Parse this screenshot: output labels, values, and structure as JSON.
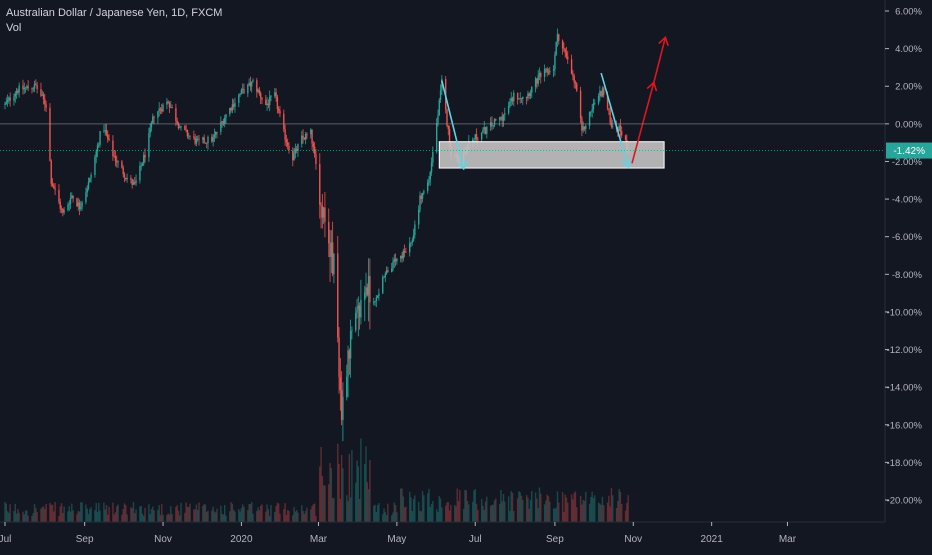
{
  "header": {
    "symbol_line": "Australian Dollar / Japanese Yen, 1D, FXCM",
    "volume_label": "Vol"
  },
  "colors": {
    "background": "#131722",
    "up": "#26a69a",
    "down": "#ef5350",
    "zero_line": "#9598a1",
    "axis_text": "#b2b5be",
    "price_tag": "#26a69a",
    "zone_fill": "#c0c0c0",
    "annotation_cyan": "#5ed4e6",
    "annotation_red": "#e0151e"
  },
  "chart_data": {
    "type": "candlestick",
    "title": "Australian Dollar / Japanese Yen, 1D, FXCM",
    "y_axis_unit": "percent change",
    "y_ticks": [
      6,
      4,
      2,
      0,
      -2,
      -4,
      -6,
      -8,
      -10,
      -12,
      -14,
      -16,
      -18,
      -20
    ],
    "y_tick_labels": [
      "6.00%",
      "4.00%",
      "2.00%",
      "0.00%",
      "-2.00%",
      "-4.00%",
      "-6.00%",
      "-8.00%",
      "-10.00%",
      "-12.00%",
      "-14.00%",
      "-16.00%",
      "-18.00%",
      "-20.00%"
    ],
    "ylim": [
      -21.3,
      6.4
    ],
    "x_axis": {
      "start": "2019-07-01",
      "end": "2021-03-31",
      "ticks": [
        {
          "label": "Jul",
          "date": "2019-07-01"
        },
        {
          "label": "Sep",
          "date": "2019-09-01"
        },
        {
          "label": "Nov",
          "date": "2019-11-01"
        },
        {
          "label": "2020",
          "date": "2020-01-01"
        },
        {
          "label": "Mar",
          "date": "2020-03-01"
        },
        {
          "label": "May",
          "date": "2020-05-01"
        },
        {
          "label": "Jul",
          "date": "2020-07-01"
        },
        {
          "label": "Sep",
          "date": "2020-09-01"
        },
        {
          "label": "Nov",
          "date": "2020-11-01"
        },
        {
          "label": "2021",
          "date": "2021-01-01"
        },
        {
          "label": "Mar",
          "date": "2021-03-01"
        }
      ]
    },
    "price_line": {
      "value": -1.42,
      "label": "-1.42%"
    },
    "grid": false,
    "path_anchors": [
      [
        "2019-07-01",
        1.0
      ],
      [
        "2019-07-10",
        1.8
      ],
      [
        "2019-07-25",
        2.0
      ],
      [
        "2019-08-02",
        1.0
      ],
      [
        "2019-08-06",
        -3.0
      ],
      [
        "2019-08-15",
        -4.8
      ],
      [
        "2019-08-22",
        -3.8
      ],
      [
        "2019-08-28",
        -4.4
      ],
      [
        "2019-09-05",
        -3.0
      ],
      [
        "2019-09-15",
        0.0
      ],
      [
        "2019-09-22",
        -1.5
      ],
      [
        "2019-10-03",
        -2.8
      ],
      [
        "2019-10-10",
        -3.3
      ],
      [
        "2019-10-18",
        -1.6
      ],
      [
        "2019-10-25",
        0.5
      ],
      [
        "2019-11-05",
        1.2
      ],
      [
        "2019-11-15",
        -0.3
      ],
      [
        "2019-11-28",
        -1.0
      ],
      [
        "2019-12-10",
        -0.8
      ],
      [
        "2019-12-20",
        0.5
      ],
      [
        "2019-12-31",
        1.6
      ],
      [
        "2020-01-10",
        2.2
      ],
      [
        "2020-01-20",
        1.0
      ],
      [
        "2020-01-27",
        1.5
      ],
      [
        "2020-02-03",
        -0.5
      ],
      [
        "2020-02-10",
        -1.8
      ],
      [
        "2020-02-17",
        -0.8
      ],
      [
        "2020-02-24",
        -0.5
      ],
      [
        "2020-03-02",
        -3.5
      ],
      [
        "2020-03-09",
        -6.5
      ],
      [
        "2020-03-13",
        -7.5
      ],
      [
        "2020-03-16",
        -11.5
      ],
      [
        "2020-03-19",
        -15.5
      ],
      [
        "2020-03-24",
        -12.0
      ],
      [
        "2020-03-31",
        -10.5
      ],
      [
        "2020-04-07",
        -8.5
      ],
      [
        "2020-04-14",
        -9.5
      ],
      [
        "2020-04-21",
        -8.0
      ],
      [
        "2020-04-28",
        -7.5
      ],
      [
        "2020-05-05",
        -7.0
      ],
      [
        "2020-05-12",
        -6.5
      ],
      [
        "2020-05-19",
        -4.0
      ],
      [
        "2020-05-26",
        -3.0
      ],
      [
        "2020-06-02",
        0.5
      ],
      [
        "2020-06-05",
        2.2
      ],
      [
        "2020-06-12",
        -1.5
      ],
      [
        "2020-06-19",
        -2.0
      ],
      [
        "2020-06-26",
        -1.0
      ],
      [
        "2020-07-06",
        -0.5
      ],
      [
        "2020-07-15",
        0.0
      ],
      [
        "2020-07-24",
        0.5
      ],
      [
        "2020-07-31",
        1.5
      ],
      [
        "2020-08-10",
        1.5
      ],
      [
        "2020-08-20",
        2.5
      ],
      [
        "2020-08-31",
        3.0
      ],
      [
        "2020-09-03",
        4.8
      ],
      [
        "2020-09-10",
        3.5
      ],
      [
        "2020-09-18",
        1.8
      ],
      [
        "2020-09-22",
        -0.5
      ],
      [
        "2020-10-01",
        1.0
      ],
      [
        "2020-10-08",
        1.8
      ],
      [
        "2020-10-15",
        0.0
      ],
      [
        "2020-10-22",
        -0.3
      ],
      [
        "2020-10-28",
        -1.3
      ]
    ],
    "volume_note": "volume histogram along bottom"
  },
  "annotations": {
    "zone": {
      "type": "rectangle",
      "start": "2020-06-03",
      "end": "2020-11-25",
      "top": -0.95,
      "bottom": -2.35
    },
    "cyan_arrows": [
      {
        "from": [
          "2020-06-05",
          2.3
        ],
        "to": [
          "2020-06-22",
          -2.4
        ]
      },
      {
        "from": [
          "2020-10-07",
          2.7
        ],
        "to": [
          "2020-10-28",
          -2.3
        ]
      }
    ],
    "red_arrow": {
      "points": [
        [
          "2020-10-31",
          -2.1
        ],
        [
          "2020-11-17",
          2.2
        ],
        [
          "2020-11-26",
          4.6
        ]
      ]
    }
  }
}
